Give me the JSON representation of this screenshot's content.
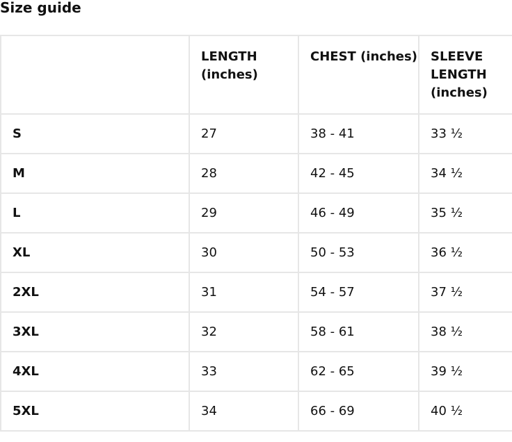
{
  "title": "Size guide",
  "headers": [
    "",
    "LENGTH (inches)",
    "CHEST (inches)",
    "SLEEVE LENGTH (inches)"
  ],
  "rows": [
    [
      "S",
      "27",
      "38 - 41",
      "33 ½"
    ],
    [
      "M",
      "28",
      "42 - 45",
      "34 ½"
    ],
    [
      "L",
      "29",
      "46 - 49",
      "35 ½"
    ],
    [
      "XL",
      "30",
      "50 - 53",
      "36 ½"
    ],
    [
      "2XL",
      "31",
      "54 - 57",
      "37 ½"
    ],
    [
      "3XL",
      "32",
      "58 - 61",
      "38 ½"
    ],
    [
      "4XL",
      "33",
      "62 - 65",
      "39 ½"
    ],
    [
      "5XL",
      "34",
      "66 - 69",
      "40 ½"
    ]
  ]
}
